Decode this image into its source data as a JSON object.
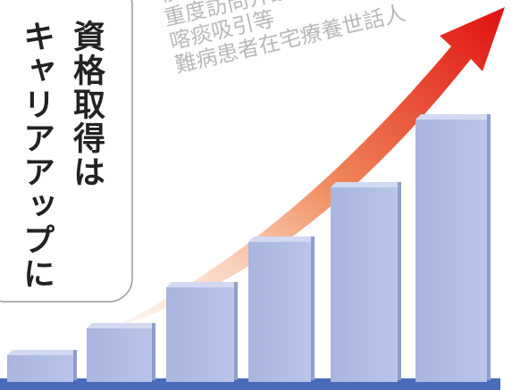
{
  "headline": {
    "line1": "資格取得は",
    "line2": "キャリアアップに"
  },
  "qualifications": [
    "移動",
    "重度訪問介護",
    "喀痰吸引等",
    "難病患者在宅療養世話人"
  ]
}
